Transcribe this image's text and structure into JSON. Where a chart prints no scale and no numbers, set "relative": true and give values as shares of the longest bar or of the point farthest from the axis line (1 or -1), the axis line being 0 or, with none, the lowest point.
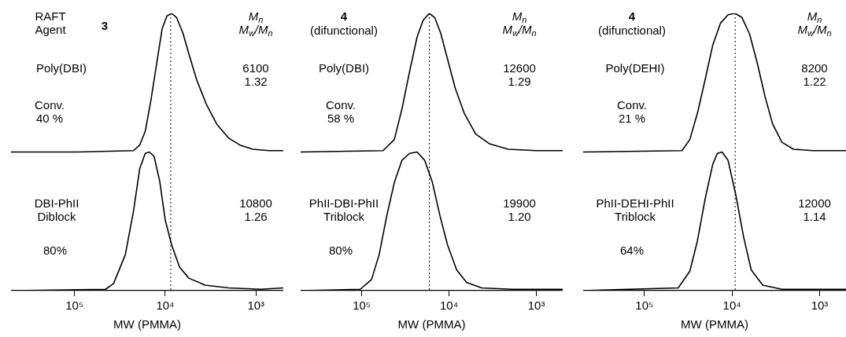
{
  "chart_data": [
    {
      "type": "line",
      "relative": true,
      "log": "x",
      "xlim": [
        500000,
        500
      ],
      "xlabel": "MW (PMMA)",
      "xticks": [
        {
          "value": 100000,
          "label": "10⁵"
        },
        {
          "value": 10000,
          "label": "10⁴"
        },
        {
          "value": 1000,
          "label": "10³"
        }
      ],
      "series": [
        {
          "color": "#000000",
          "x": [
            500000,
            92000,
            22400,
            19100,
            16600,
            14400,
            12200,
            10800,
            9600,
            8500,
            7500,
            6400,
            5500,
            4500,
            3500,
            2700,
            2000,
            1500,
            1080,
            720,
            500
          ],
          "values": [
            0.5,
            0.5,
            0.505,
            0.525,
            0.575,
            0.685,
            0.835,
            0.945,
            0.99,
            1,
            0.985,
            0.93,
            0.855,
            0.76,
            0.67,
            0.6,
            0.55,
            0.525,
            0.51,
            0.505,
            0.505
          ]
        },
        {
          "color": "#000000",
          "x": [
            500000,
            45500,
            37100,
            27500,
            22400,
            19100,
            16600,
            15000,
            13300,
            11500,
            10000,
            8500,
            6950,
            5500,
            3640,
            1990,
            885,
            500
          ],
          "values": [
            0,
            0.005,
            0.025,
            0.13,
            0.285,
            0.44,
            0.495,
            0.5,
            0.485,
            0.395,
            0.255,
            0.165,
            0.085,
            0.045,
            0.02,
            0.01,
            0.005,
            0.01
          ]
        }
      ],
      "ref_lines": [
        {
          "axis": "x",
          "value": 8700,
          "line_style": "dotted"
        }
      ],
      "annotations": [
        "RAFT\nAgent",
        "3",
        "M$_{n}$\nM$_{w}$/M$_{n}$",
        "Poly(DBI)",
        "6100\n1.32",
        "Conv.\n40 %",
        "DBI-PhII\nDiblock",
        "10800\n1.26",
        "80%"
      ]
    },
    {
      "type": "line",
      "relative": true,
      "log": "x",
      "xlim": [
        500000,
        500
      ],
      "xlabel": "MW (PMMA)",
      "xticks": [
        {
          "value": 100000,
          "label": "10⁵"
        },
        {
          "value": 10000,
          "label": "10⁴"
        },
        {
          "value": 1000,
          "label": "10³"
        }
      ],
      "series": [
        {
          "color": "#000000",
          "x": [
            500000,
            57000,
            42300,
            34600,
            28300,
            23200,
            19800,
            16800,
            14600,
            12500,
            10400,
            8500,
            6700,
            4960,
            3460,
            2100,
            1000,
            500
          ],
          "values": [
            0.5,
            0.505,
            0.545,
            0.655,
            0.79,
            0.915,
            0.975,
            1,
            0.985,
            0.93,
            0.835,
            0.73,
            0.64,
            0.565,
            0.53,
            0.51,
            0.505,
            0.505
          ]
        },
        {
          "color": "#000000",
          "x": [
            500000,
            104000,
            77100,
            63100,
            51600,
            42300,
            34600,
            28300,
            23200,
            19000,
            15500,
            12700,
            10400,
            8190,
            6310,
            4230,
            1900,
            500
          ],
          "values": [
            0,
            0.005,
            0.04,
            0.13,
            0.27,
            0.39,
            0.47,
            0.495,
            0.5,
            0.47,
            0.39,
            0.27,
            0.165,
            0.075,
            0.03,
            0.01,
            0.005,
            0.005
          ]
        }
      ],
      "ref_lines": [
        {
          "axis": "x",
          "value": 16800,
          "line_style": "dotted"
        }
      ],
      "annotations": [
        "(difunctional)",
        "4",
        "M$_{n}$\nM$_{w}$/M$_{n}$",
        "Poly(DBI)",
        "12600\n1.29",
        "Conv.\n58 %",
        "PhII-DBI-PhII\nTriblock",
        "19900\n1.20",
        "80%"
      ]
    },
    {
      "type": "line",
      "relative": true,
      "log": "x",
      "xlim": [
        500000,
        500
      ],
      "xlabel": "MW (PMMA)",
      "xticks": [
        {
          "value": 100000,
          "label": "10⁵"
        },
        {
          "value": 10000,
          "label": "10⁴"
        },
        {
          "value": 1000,
          "label": "10³"
        }
      ],
      "series": [
        {
          "color": "#000000",
          "x": [
            500000,
            37200,
            30300,
            24800,
            20300,
            16600,
            13500,
            11100,
            9200,
            7690,
            6290,
            5140,
            4200,
            3430,
            2690,
            1990,
            1200,
            500
          ],
          "values": [
            0.5,
            0.505,
            0.545,
            0.64,
            0.76,
            0.885,
            0.965,
            0.995,
            1,
            0.985,
            0.925,
            0.82,
            0.7,
            0.6,
            0.535,
            0.51,
            0.505,
            0.505
          ]
        },
        {
          "color": "#000000",
          "x": [
            500000,
            41100,
            30300,
            24800,
            20300,
            16600,
            14700,
            13000,
            11100,
            9040,
            7390,
            6040,
            4460,
            2690,
            500
          ],
          "values": [
            0,
            0.01,
            0.07,
            0.18,
            0.33,
            0.455,
            0.495,
            0.5,
            0.47,
            0.345,
            0.195,
            0.075,
            0.02,
            0.005,
            0.005
          ]
        }
      ],
      "ref_lines": [
        {
          "axis": "x",
          "value": 9200,
          "line_style": "dotted"
        }
      ],
      "annotations": [
        "(difunctional)",
        "4",
        "M$_{n}$\nM$_{w}$/M$_{n}$",
        "Poly(DEHI)",
        "8200\n1.22",
        "Conv.\n21 %",
        "PhII-DEHI-PhII\nTriblock",
        "12000\n1.14",
        "64%"
      ]
    }
  ]
}
